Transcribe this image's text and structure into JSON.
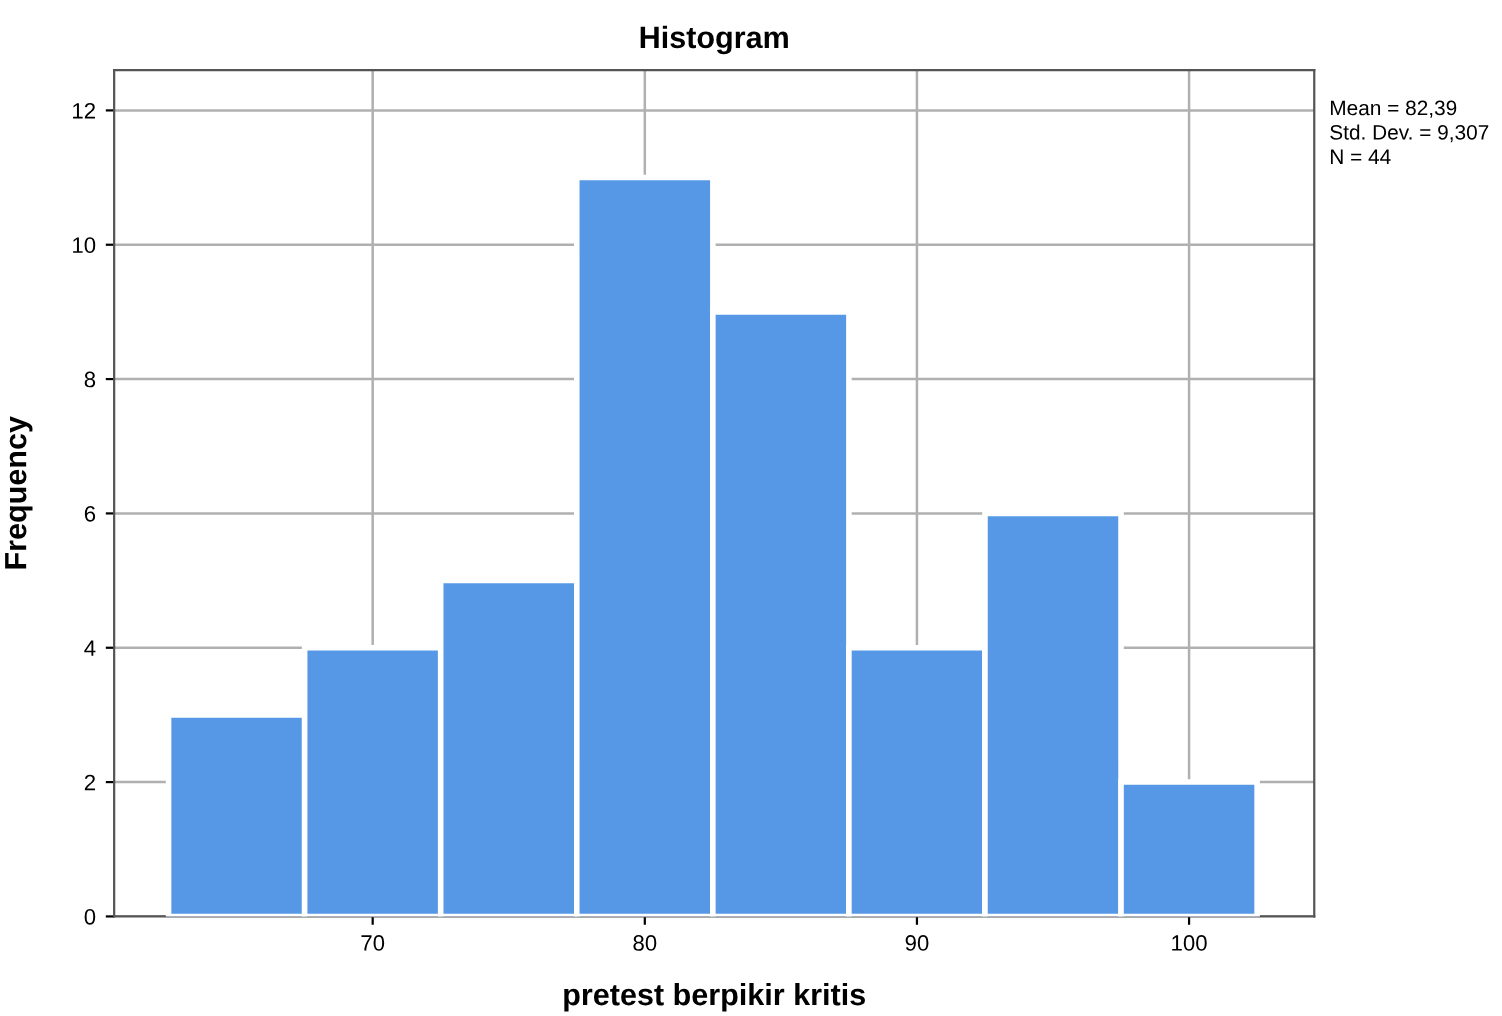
{
  "chart_data": {
    "type": "histogram",
    "title": "Histogram",
    "xlabel": "pretest berpikir kritis",
    "ylabel": "Frequency",
    "bins": [
      62.5,
      67.5,
      72.5,
      77.5,
      82.5,
      87.5,
      92.5,
      97.5,
      102.5
    ],
    "values": [
      3,
      4,
      5,
      11,
      9,
      4,
      6,
      2
    ],
    "color": "#5698e6",
    "xlim": [
      60.5,
      104.6
    ],
    "xticks": [
      70,
      80,
      90,
      100
    ],
    "ylim": [
      0,
      12.6
    ],
    "yticks": [
      0,
      2,
      4,
      6,
      8,
      10,
      12
    ],
    "grid": true,
    "annotations": [
      "Mean = 82,39",
      "Std. Dev. = 9,307",
      "N = 44"
    ]
  }
}
